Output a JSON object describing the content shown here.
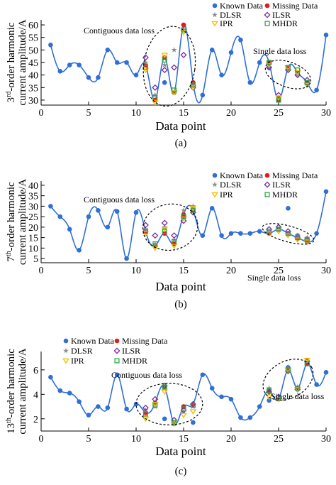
{
  "chart_data": [
    {
      "type": "line",
      "panel_label": "(a)",
      "ylabel_parts": {
        "pre": "3",
        "sup": "rd",
        "post": "-order harmonic",
        "line2": "current amplitude/A"
      },
      "xlabel": "Data point",
      "xlim": [
        0,
        30
      ],
      "ylim": [
        28,
        62
      ],
      "xticks": [
        0,
        5,
        10,
        15,
        20,
        25,
        30
      ],
      "yticks": [
        30,
        35,
        40,
        45,
        50,
        55,
        60
      ],
      "annotations": [
        "Contiguous data loss",
        "Single data loss"
      ],
      "known_x": [
        1,
        2,
        3,
        4,
        5,
        6,
        7,
        8,
        9,
        10,
        11,
        13,
        14,
        15,
        16,
        17,
        18,
        19,
        20,
        21,
        22,
        23,
        24,
        26,
        27,
        28,
        29,
        30
      ],
      "known_y": [
        52,
        41.5,
        44,
        44,
        39,
        39,
        50,
        45,
        45,
        40,
        44,
        37,
        33,
        60,
        37,
        32,
        50,
        40,
        49,
        54,
        37,
        45,
        43,
        43,
        41,
        37,
        34,
        56
      ],
      "missing_x": [
        11,
        12,
        13,
        14,
        15,
        16,
        24,
        25,
        26,
        27,
        28
      ],
      "missing_y": [
        44,
        30,
        47,
        33,
        60,
        37,
        45,
        30,
        43,
        41,
        37
      ],
      "series": [
        {
          "name": "DLSR",
          "x": [
            11,
            12,
            13,
            14,
            15,
            16,
            24,
            25,
            26,
            27,
            28
          ],
          "y": [
            45,
            32,
            44,
            50,
            58,
            36,
            44,
            31,
            42,
            40,
            36
          ]
        },
        {
          "name": "ILSR",
          "x": [
            11,
            12,
            13,
            14,
            15,
            16,
            24,
            25,
            26,
            27,
            28
          ],
          "y": [
            47,
            35,
            42,
            43,
            48,
            35,
            43,
            32,
            42,
            40,
            38
          ]
        },
        {
          "name": "IPR",
          "x": [
            11,
            12,
            13,
            14,
            15,
            16,
            24,
            25,
            26,
            27,
            28
          ],
          "y": [
            42,
            29,
            48,
            33,
            57,
            35,
            44,
            31,
            43,
            41,
            36
          ]
        },
        {
          "name": "MHDR",
          "x": [
            11,
            12,
            13,
            14,
            15,
            16,
            24,
            25,
            26,
            27,
            28
          ],
          "y": [
            43,
            31,
            46,
            34,
            58,
            36,
            45,
            30,
            43,
            42,
            37
          ]
        }
      ]
    },
    {
      "type": "line",
      "panel_label": "(b)",
      "ylabel_parts": {
        "pre": "7",
        "sup": "th",
        "post": "-order harmonic",
        "line2": "current amplitude/A"
      },
      "xlabel": "Data point",
      "xlim": [
        0,
        30
      ],
      "ylim": [
        3,
        42
      ],
      "xticks": [
        0,
        5,
        10,
        15,
        20,
        25,
        30
      ],
      "yticks": [
        5,
        10,
        15,
        20,
        25,
        30,
        35,
        40
      ],
      "annotations": [
        "Contiguous data loss",
        "Single data loss"
      ],
      "known_x": [
        1,
        2,
        3,
        4,
        5,
        6,
        7,
        8,
        9,
        10,
        11,
        13,
        14,
        15,
        16,
        17,
        18,
        19,
        20,
        21,
        22,
        23,
        24,
        26,
        27,
        28,
        29,
        30
      ],
      "known_y": [
        30,
        25,
        19,
        9,
        25,
        28,
        20,
        27.5,
        5,
        27,
        18,
        17,
        12,
        25,
        28,
        16,
        29,
        16,
        17,
        17,
        17,
        18,
        17,
        29,
        16,
        14,
        17,
        37
      ],
      "missing_x": [
        11,
        12,
        13,
        14,
        15,
        16,
        24,
        25,
        26,
        27,
        28
      ],
      "missing_y": [
        18,
        11,
        17,
        12,
        26,
        28,
        17,
        19,
        17,
        15,
        13
      ],
      "series": [
        {
          "name": "DLSR",
          "x": [
            11,
            12,
            13,
            14,
            15,
            16,
            24,
            25,
            26,
            27,
            28
          ],
          "y": [
            19,
            12,
            20,
            14,
            28,
            30,
            18,
            19,
            17,
            16,
            15
          ]
        },
        {
          "name": "ILSR",
          "x": [
            11,
            12,
            13,
            14,
            15,
            16,
            24,
            25,
            26,
            27,
            28
          ],
          "y": [
            21,
            16,
            22,
            16,
            23,
            27,
            19,
            20,
            18,
            15,
            14
          ]
        },
        {
          "name": "IPR",
          "x": [
            11,
            12,
            13,
            14,
            15,
            16,
            24,
            25,
            26,
            27,
            28
          ],
          "y": [
            17,
            10,
            19,
            11,
            24,
            29,
            17,
            18,
            16,
            14,
            13
          ]
        },
        {
          "name": "MHDR",
          "x": [
            11,
            12,
            13,
            14,
            15,
            16,
            24,
            25,
            26,
            27,
            28
          ],
          "y": [
            18,
            12,
            18,
            13,
            25,
            28,
            18,
            19,
            17,
            15,
            14
          ]
        }
      ]
    },
    {
      "type": "line",
      "panel_label": "(c)",
      "ylabel_parts": {
        "pre": "13",
        "sup": "th",
        "post": "-order harmonic",
        "line2": "current amplitude/A"
      },
      "xlabel": "Data point",
      "xlim": [
        0,
        30
      ],
      "ylim": [
        1,
        7.5
      ],
      "xticks": [
        0,
        5,
        10,
        15,
        20,
        25,
        30
      ],
      "yticks": [
        2,
        4,
        6
      ],
      "annotations": [
        "Contiguous data loss",
        "Single data loss"
      ],
      "known_x": [
        1,
        2,
        3,
        4,
        5,
        6,
        7,
        8,
        9,
        10,
        11,
        13,
        14,
        15,
        16,
        17,
        18,
        19,
        20,
        21,
        22,
        23,
        24,
        26,
        27,
        28,
        29,
        30
      ],
      "known_y": [
        5.4,
        4.3,
        4.1,
        3.4,
        2.3,
        3.0,
        2.9,
        5.6,
        2.8,
        3.2,
        2.5,
        2.0,
        1.6,
        3.0,
        1.7,
        5.6,
        4.5,
        3.8,
        3.6,
        2.1,
        2.1,
        3.0,
        3.5,
        6.2,
        4.5,
        6.5,
        4.8,
        5.8
      ],
      "missing_x": [
        11,
        12,
        13,
        14,
        15,
        16,
        24,
        25,
        26,
        27,
        28
      ],
      "missing_y": [
        2.5,
        3.3,
        4.6,
        1.6,
        3.0,
        3.2,
        4.3,
        3.6,
        6.0,
        4.5,
        6.5
      ],
      "series": [
        {
          "name": "DLSR",
          "x": [
            11,
            12,
            13,
            14,
            15,
            16,
            24,
            25,
            26,
            27,
            28
          ],
          "y": [
            2.7,
            3.0,
            4.5,
            1.7,
            2.6,
            3.0,
            4.5,
            3.7,
            6.1,
            4.6,
            6.6
          ]
        },
        {
          "name": "ILSR",
          "x": [
            11,
            12,
            13,
            14,
            15,
            16,
            24,
            25,
            26,
            27,
            28
          ],
          "y": [
            2.9,
            3.6,
            4.7,
            1.9,
            2.7,
            3.2,
            4.2,
            3.8,
            5.9,
            4.4,
            6.7
          ]
        },
        {
          "name": "IPR",
          "x": [
            11,
            12,
            13,
            14,
            15,
            16,
            24,
            25,
            26,
            27,
            28
          ],
          "y": [
            2.0,
            3.2,
            4.2,
            1.6,
            2.3,
            2.6,
            3.8,
            3.6,
            6.0,
            4.4,
            6.8
          ]
        },
        {
          "name": "MHDR",
          "x": [
            11,
            12,
            13,
            14,
            15,
            16,
            24,
            25,
            26,
            27,
            28
          ],
          "y": [
            2.4,
            3.1,
            4.6,
            1.7,
            2.8,
            3.1,
            4.3,
            3.7,
            6.0,
            4.5,
            6.5
          ]
        }
      ]
    }
  ],
  "legend": {
    "known": "Known Data",
    "missing": "Missing Data",
    "dlsr": "DLSR",
    "ilsr": "ILSR",
    "ipr": "IPR",
    "mhdr": "MHDR"
  },
  "colors": {
    "known": "#2f6fd6",
    "missing": "#e31b1b",
    "dlsr": "#8c8c8c",
    "ilsr": "#7a2aa6",
    "ipr": "#f2c200",
    "mhdr": "#2aa84a"
  }
}
